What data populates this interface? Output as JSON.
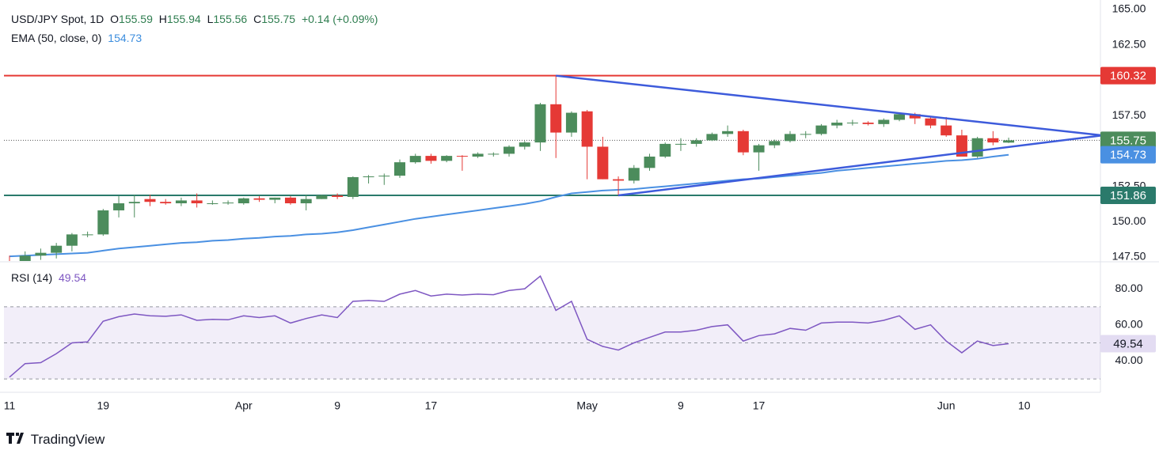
{
  "chart_data": {
    "type": "candlestick",
    "title": "USD/JPY Spot, 1D",
    "labels": {
      "open": "O",
      "high": "H",
      "low": "L",
      "close": "C"
    },
    "change": "+0.14 (+0.09%)",
    "categories": [
      "11",
      null,
      null,
      null,
      null,
      null,
      "19",
      null,
      null,
      null,
      null,
      null,
      null,
      null,
      null,
      "Apr",
      null,
      null,
      null,
      null,
      null,
      "9",
      null,
      null,
      null,
      null,
      null,
      "17",
      null,
      null,
      null,
      null,
      null,
      null,
      null,
      null,
      null,
      "May",
      null,
      null,
      null,
      null,
      null,
      "9",
      null,
      null,
      null,
      null,
      "17",
      null,
      null,
      null,
      null,
      null,
      null,
      null,
      null,
      null,
      null,
      null,
      "Jun",
      null,
      null,
      null,
      null,
      "10",
      null,
      null,
      null,
      null
    ],
    "open": [
      147.1,
      147.0,
      147.6,
      147.8,
      148.3,
      149.1,
      149.1,
      150.8,
      151.3,
      151.6,
      151.4,
      151.3,
      151.5,
      151.3,
      151.3,
      151.3,
      151.65,
      151.55,
      151.7,
      151.3,
      151.6,
      151.85,
      151.75,
      153.15,
      153.2,
      153.25,
      154.2,
      154.65,
      154.3,
      154.65,
      154.6,
      154.8,
      154.8,
      155.3,
      155.6,
      158.3,
      156.3,
      157.8,
      155.3,
      153.0,
      152.9,
      153.8,
      154.6,
      155.5,
      155.5,
      155.75,
      156.2,
      156.4,
      154.9,
      155.4,
      155.7,
      156.2,
      156.2,
      156.8,
      157.0,
      157.0,
      156.9,
      157.2,
      157.6,
      157.3,
      156.8,
      156.1,
      154.6,
      155.9,
      155.59,
      null,
      null,
      null,
      null,
      null
    ],
    "high": [
      147.6,
      147.9,
      148.1,
      148.5,
      149.2,
      149.3,
      150.9,
      151.8,
      151.9,
      151.9,
      151.6,
      151.7,
      152.0,
      151.5,
      151.5,
      151.7,
      151.8,
      151.7,
      151.8,
      151.9,
      151.9,
      152.0,
      153.2,
      153.3,
      153.4,
      154.4,
      154.8,
      154.8,
      154.7,
      154.7,
      154.9,
      154.9,
      155.4,
      155.7,
      158.4,
      160.32,
      157.8,
      157.9,
      156.0,
      153.2,
      154.0,
      154.8,
      155.6,
      155.9,
      155.9,
      156.3,
      156.8,
      156.5,
      155.5,
      155.8,
      156.4,
      156.4,
      156.9,
      157.2,
      157.2,
      157.1,
      157.3,
      157.7,
      157.7,
      157.4,
      157.4,
      156.5,
      156.0,
      156.4,
      155.94,
      null,
      null,
      null,
      null,
      null
    ],
    "low": [
      146.5,
      146.9,
      147.3,
      147.4,
      147.9,
      148.9,
      149.0,
      150.3,
      150.3,
      151.1,
      151.2,
      151.1,
      151.0,
      151.2,
      151.2,
      151.2,
      151.4,
      151.3,
      151.2,
      150.8,
      151.6,
      151.6,
      151.6,
      152.7,
      152.6,
      153.1,
      154.1,
      154.1,
      154.2,
      153.6,
      154.5,
      154.6,
      154.6,
      155.1,
      155.0,
      154.5,
      156.0,
      153.0,
      153.0,
      151.86,
      152.7,
      153.6,
      154.5,
      155.0,
      155.3,
      155.7,
      156.0,
      154.7,
      153.6,
      155.2,
      155.6,
      155.9,
      156.1,
      156.6,
      156.8,
      156.8,
      156.7,
      157.1,
      156.9,
      156.6,
      156.0,
      154.6,
      154.5,
      155.4,
      155.56,
      null,
      null,
      null,
      null,
      null
    ],
    "close": [
      147.0,
      147.6,
      147.8,
      148.3,
      149.1,
      149.1,
      150.8,
      151.3,
      151.4,
      151.4,
      151.3,
      151.5,
      151.3,
      151.3,
      151.35,
      151.65,
      151.55,
      151.7,
      151.3,
      151.6,
      151.85,
      151.75,
      153.15,
      153.2,
      153.25,
      154.2,
      154.65,
      154.3,
      154.65,
      154.6,
      154.8,
      154.8,
      155.3,
      155.6,
      158.3,
      156.3,
      157.7,
      155.3,
      153.0,
      152.9,
      153.8,
      154.6,
      155.5,
      155.5,
      155.75,
      156.2,
      156.4,
      154.9,
      155.4,
      155.7,
      156.2,
      156.2,
      156.8,
      157.0,
      157.0,
      156.9,
      157.2,
      157.6,
      157.3,
      156.8,
      156.1,
      154.6,
      155.9,
      155.6,
      155.75,
      null,
      null,
      null,
      null,
      null
    ],
    "up_color": "#4c8c5c",
    "down_color": "#e53935",
    "ylim": [
      147.22,
      165.39
    ],
    "yticks": [
      {
        "value": 147.5,
        "label": "147.50"
      },
      {
        "value": 150,
        "label": "150.00"
      },
      {
        "value": 152.5,
        "label": "152.50"
      },
      {
        "value": 157.5,
        "label": "157.50"
      },
      {
        "value": 162.5,
        "label": "162.50"
      },
      {
        "value": 165,
        "label": "165.00"
      }
    ],
    "ema": {
      "name": "EMA (50, close, 0)",
      "color": "#4a90e2",
      "values": [
        147.55,
        147.6,
        147.65,
        147.7,
        147.75,
        147.8,
        147.95,
        148.1,
        148.2,
        148.3,
        148.4,
        148.5,
        148.55,
        148.65,
        148.7,
        148.8,
        148.85,
        148.95,
        149.0,
        149.1,
        149.15,
        149.25,
        149.4,
        149.6,
        149.8,
        150.0,
        150.2,
        150.35,
        150.5,
        150.65,
        150.8,
        150.95,
        151.1,
        151.25,
        151.45,
        151.75,
        152.0,
        152.1,
        152.2,
        152.25,
        152.3,
        152.4,
        152.5,
        152.6,
        152.7,
        152.8,
        152.9,
        153.0,
        153.05,
        153.15,
        153.25,
        153.35,
        153.45,
        153.6,
        153.7,
        153.8,
        153.9,
        154.0,
        154.1,
        154.2,
        154.3,
        154.35,
        154.45,
        154.6,
        154.73,
        null,
        null,
        null,
        null,
        null
      ]
    },
    "levels": [
      {
        "value": 160.32,
        "color": "#e53935"
      },
      {
        "value": 151.86,
        "color": "#2a7a6b"
      }
    ],
    "trendlines": [
      {
        "color": "#3d5bdb",
        "start": [
          35,
          160.32
        ],
        "end": [
          70,
          156.1
        ]
      },
      {
        "color": "#3d5bdb",
        "start": [
          39,
          151.86
        ],
        "end": [
          70,
          156.1
        ]
      }
    ],
    "rsi": {
      "name": "RSI (14)",
      "color": "#7e57c2",
      "ylim": [
        27.4,
        94.5
      ],
      "yticks": [
        {
          "value": 40,
          "label": "40.00"
        },
        {
          "value": 60,
          "label": "60.00"
        },
        {
          "value": 80,
          "label": "80.00"
        }
      ],
      "levels": [
        70,
        50,
        30
      ],
      "values": [
        31,
        38.5,
        39,
        44,
        50,
        50.5,
        62,
        64.5,
        66,
        65,
        64.7,
        65.5,
        62.5,
        63,
        62.8,
        65,
        64,
        65,
        61,
        63.5,
        65.5,
        64,
        73,
        73.5,
        73,
        77,
        79,
        76,
        77,
        76.5,
        77,
        76.7,
        79,
        80,
        87,
        68,
        73,
        52,
        48,
        46,
        50,
        53,
        56,
        56,
        57,
        59,
        60,
        51,
        54,
        55,
        58,
        57,
        61,
        61.5,
        61.5,
        61,
        62.5,
        65,
        57.5,
        60,
        51,
        44.5,
        51,
        48.5,
        49.54,
        null,
        null,
        null,
        null,
        null
      ]
    },
    "branding": "TradingView"
  }
}
